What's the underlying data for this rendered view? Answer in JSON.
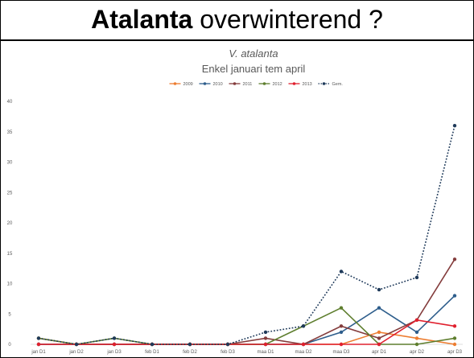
{
  "slide": {
    "title_bold": "Atalanta",
    "title_rest": " overwinterend ?"
  },
  "chart_data": {
    "type": "line",
    "title": "V. atalanta",
    "subtitle": "Enkel januari tem april",
    "xlabel": "",
    "ylabel": "",
    "categories": [
      "jan D1",
      "jan D2",
      "jan D3",
      "feb D1",
      "feb D2",
      "feb D3",
      "maa D1",
      "maa D2",
      "maa D3",
      "apr D1",
      "apr D2",
      "apr D3"
    ],
    "ylim": [
      0,
      40
    ],
    "yticks": [
      0,
      5,
      10,
      15,
      20,
      25,
      30,
      35,
      40
    ],
    "grid": false,
    "legend_position": "top",
    "series": [
      {
        "name": "2009",
        "color": "#ED7D31",
        "dashed": false,
        "values": [
          1,
          0,
          0,
          0,
          0,
          0,
          0,
          0,
          0,
          2,
          1,
          0
        ]
      },
      {
        "name": "2010",
        "color": "#2E5E8C",
        "dashed": false,
        "values": [
          0,
          0,
          0,
          0,
          0,
          0,
          0,
          0,
          2,
          6,
          2,
          8
        ]
      },
      {
        "name": "2011",
        "color": "#843C3C",
        "dashed": false,
        "values": [
          0,
          0,
          0,
          0,
          0,
          0,
          1,
          0,
          3,
          1,
          4,
          14
        ]
      },
      {
        "name": "2012",
        "color": "#5E7E2E",
        "dashed": false,
        "values": [
          1,
          0,
          1,
          0,
          0,
          0,
          0,
          3,
          6,
          0,
          0,
          1
        ]
      },
      {
        "name": "2013",
        "color": "#E0202E",
        "dashed": false,
        "values": [
          0,
          0,
          0,
          0,
          0,
          0,
          0,
          0,
          0,
          0,
          4,
          3
        ]
      },
      {
        "name": "Gem.",
        "color": "#1F3A5A",
        "dashed": true,
        "values": [
          1,
          0,
          1,
          0,
          0,
          0,
          2,
          3,
          12,
          9,
          11,
          36
        ]
      }
    ]
  }
}
